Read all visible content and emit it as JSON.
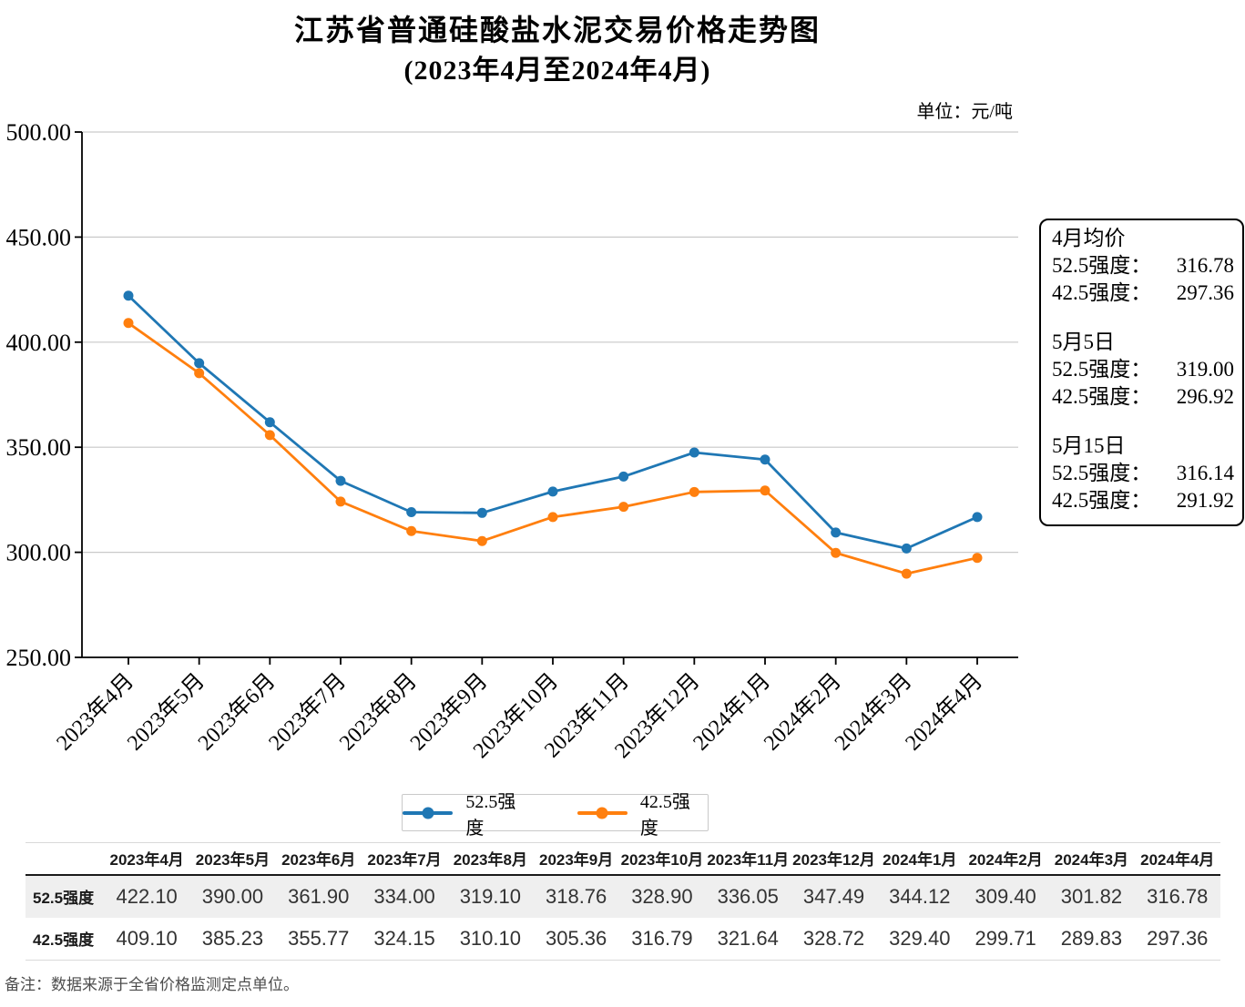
{
  "header": {
    "title_line1": "江苏省普通硅酸盐水泥交易价格走势图",
    "title_line2": "(2023年4月至2024年4月)",
    "unit_label": "单位：元/吨"
  },
  "chart_data": {
    "type": "line",
    "title": "江苏省普通硅酸盐水泥交易价格走势图(2023年4月至2024年4月)",
    "xlabel": "",
    "ylabel": "元/吨",
    "categories": [
      "2023年4月",
      "2023年5月",
      "2023年6月",
      "2023年7月",
      "2023年8月",
      "2023年9月",
      "2023年10月",
      "2023年11月",
      "2023年12月",
      "2024年1月",
      "2024年2月",
      "2024年3月",
      "2024年4月"
    ],
    "series": [
      {
        "name": "52.5强度",
        "color": "#1f77b4",
        "values": [
          422.1,
          390.0,
          361.9,
          334.0,
          319.1,
          318.76,
          328.9,
          336.05,
          347.49,
          344.12,
          309.4,
          301.82,
          316.78
        ]
      },
      {
        "name": "42.5强度",
        "color": "#ff7f0e",
        "values": [
          409.1,
          385.23,
          355.77,
          324.15,
          310.1,
          305.36,
          316.79,
          321.64,
          328.72,
          329.4,
          299.71,
          289.83,
          297.36
        ]
      }
    ],
    "ylim": [
      250,
      500
    ],
    "ytick_step": 50,
    "ytick_labels": [
      "250.00",
      "300.00",
      "350.00",
      "400.00",
      "450.00",
      "500.00"
    ],
    "grid": true,
    "gridline_color": "#c9c9c9",
    "axis_color": "#000000",
    "legend_position": "bottom"
  },
  "annotation_box": {
    "sections": [
      {
        "title": "4月均价",
        "rows": [
          {
            "label": "52.5强度：",
            "value": "316.78"
          },
          {
            "label": "42.5强度：",
            "value": "297.36"
          }
        ]
      },
      {
        "title": "5月5日",
        "rows": [
          {
            "label": "52.5强度：",
            "value": "319.00"
          },
          {
            "label": "42.5强度：",
            "value": "296.92"
          }
        ]
      },
      {
        "title": "5月15日",
        "rows": [
          {
            "label": "52.5强度：",
            "value": "316.14"
          },
          {
            "label": "42.5强度：",
            "value": "291.92"
          }
        ]
      }
    ]
  },
  "legend": {
    "items": [
      {
        "label": "52.5强度",
        "color": "#1f77b4"
      },
      {
        "label": "42.5强度",
        "color": "#ff7f0e"
      }
    ]
  },
  "table": {
    "corner": "",
    "columns": [
      "2023年4月",
      "2023年5月",
      "2023年6月",
      "2023年7月",
      "2023年8月",
      "2023年9月",
      "2023年10月",
      "2023年11月",
      "2023年12月",
      "2024年1月",
      "2024年2月",
      "2024年3月",
      "2024年4月"
    ],
    "rows": [
      {
        "label": "52.5强度",
        "values": [
          "422.10",
          "390.00",
          "361.90",
          "334.00",
          "319.10",
          "318.76",
          "328.90",
          "336.05",
          "347.49",
          "344.12",
          "309.40",
          "301.82",
          "316.78"
        ]
      },
      {
        "label": "42.5强度",
        "values": [
          "409.10",
          "385.23",
          "355.77",
          "324.15",
          "310.10",
          "305.36",
          "316.79",
          "321.64",
          "328.72",
          "329.40",
          "299.71",
          "289.83",
          "297.36"
        ]
      }
    ]
  },
  "footnote": "备注：数据来源于全省价格监测定点单位。"
}
